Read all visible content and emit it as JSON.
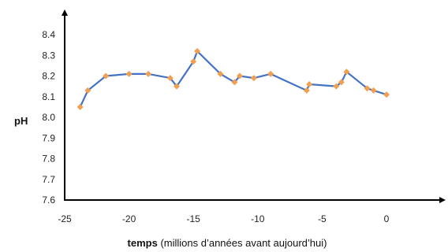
{
  "chart_data": {
    "type": "line",
    "title": "",
    "ylabel": "pH",
    "xlabel_bold": "temps",
    "xlabel_rest": " (millions d’années avant aujourd’hui)",
    "xlim": [
      -25,
      0
    ],
    "ylim": [
      7.6,
      8.4
    ],
    "x_ticks": [
      -25,
      -20,
      -15,
      -10,
      -5,
      0
    ],
    "x_tick_labels": [
      "-25",
      "-20",
      "-15",
      "-10",
      "-5",
      "0"
    ],
    "y_ticks": [
      7.6,
      7.7,
      7.8,
      7.9,
      8.0,
      8.1,
      8.2,
      8.3,
      8.4
    ],
    "y_tick_labels": [
      "7.6",
      "7.7",
      "7.8",
      "7.9",
      "8.0",
      "8.1",
      "8.2",
      "8.3",
      "8.4"
    ],
    "grid": false,
    "legend": "none",
    "series": [
      {
        "color": "#4472c4",
        "marker_color": "#f0a050",
        "points": [
          {
            "x": -23.8,
            "y": 8.05
          },
          {
            "x": -23.2,
            "y": 8.13
          },
          {
            "x": -21.8,
            "y": 8.2
          },
          {
            "x": -20.0,
            "y": 8.21
          },
          {
            "x": -18.5,
            "y": 8.21
          },
          {
            "x": -16.8,
            "y": 8.19
          },
          {
            "x": -16.3,
            "y": 8.15
          },
          {
            "x": -15.0,
            "y": 8.27
          },
          {
            "x": -14.7,
            "y": 8.32
          },
          {
            "x": -12.9,
            "y": 8.21
          },
          {
            "x": -11.8,
            "y": 8.17
          },
          {
            "x": -11.4,
            "y": 8.2
          },
          {
            "x": -10.3,
            "y": 8.19
          },
          {
            "x": -9.0,
            "y": 8.21
          },
          {
            "x": -6.2,
            "y": 8.13
          },
          {
            "x": -6.0,
            "y": 8.16
          },
          {
            "x": -3.9,
            "y": 8.15
          },
          {
            "x": -3.5,
            "y": 8.17
          },
          {
            "x": -3.1,
            "y": 8.22
          },
          {
            "x": -1.5,
            "y": 8.14
          },
          {
            "x": -1.0,
            "y": 8.13
          },
          {
            "x": 0.0,
            "y": 8.11
          }
        ]
      }
    ]
  }
}
